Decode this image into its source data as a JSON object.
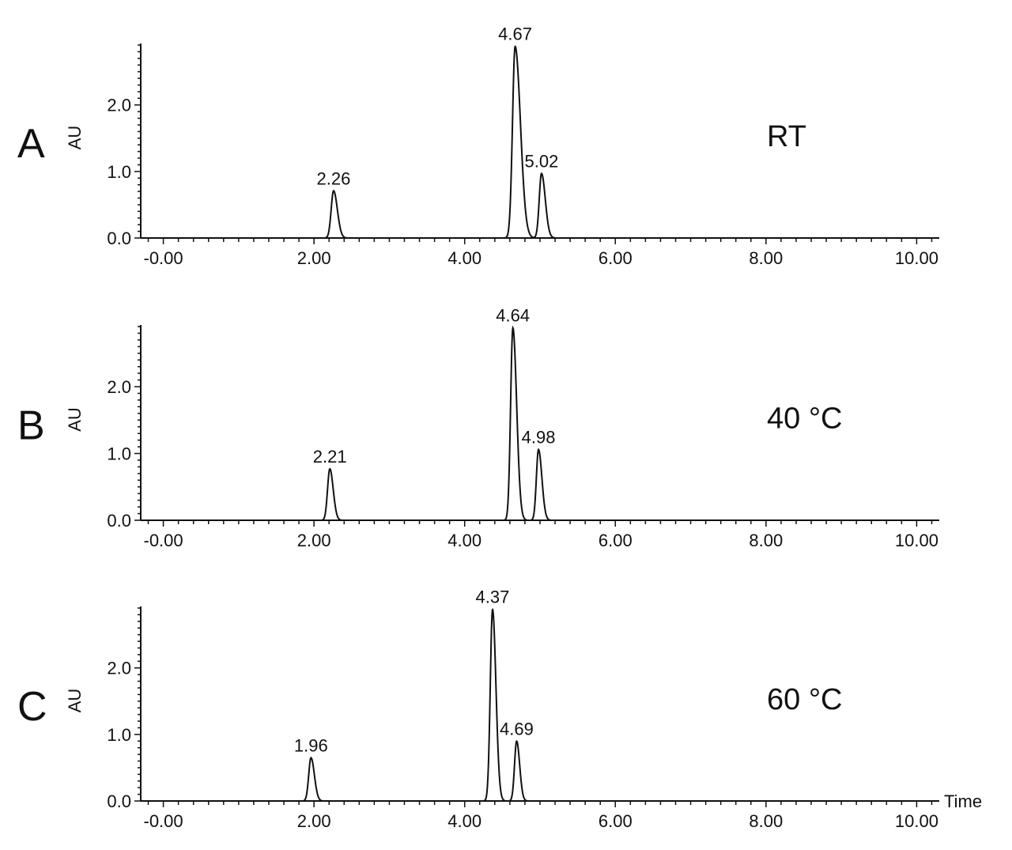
{
  "chart_data": [
    {
      "type": "line",
      "panel": "A",
      "condition": "RT",
      "ylabel": "AU",
      "xlabel": "",
      "xlim": [
        -0.3,
        10.3
      ],
      "ylim": [
        0.0,
        2.9
      ],
      "x_ticks": [
        "-0.00",
        "2.00",
        "4.00",
        "6.00",
        "8.00",
        "10.00"
      ],
      "x_tick_values": [
        0,
        2,
        4,
        6,
        8,
        10
      ],
      "y_ticks": [
        "0.0",
        "1.0",
        "2.0"
      ],
      "y_tick_values": [
        0,
        1,
        2
      ],
      "peaks": [
        {
          "label": "2.26",
          "x": 2.26,
          "height": 0.71,
          "sigma_left": 0.032,
          "sigma_right": 0.05
        },
        {
          "label": "4.67",
          "x": 4.67,
          "height": 2.88,
          "sigma_left": 0.035,
          "sigma_right": 0.07
        },
        {
          "label": "5.02",
          "x": 5.02,
          "height": 0.97,
          "sigma_left": 0.03,
          "sigma_right": 0.05
        }
      ]
    },
    {
      "type": "line",
      "panel": "B",
      "condition": "40 °C",
      "ylabel": "AU",
      "xlabel": "",
      "xlim": [
        -0.3,
        10.3
      ],
      "ylim": [
        0.0,
        2.9
      ],
      "x_ticks": [
        "-0.00",
        "2.00",
        "4.00",
        "6.00",
        "8.00",
        "10.00"
      ],
      "x_tick_values": [
        0,
        2,
        4,
        6,
        8,
        10
      ],
      "y_ticks": [
        "0.0",
        "1.0",
        "2.0"
      ],
      "y_tick_values": [
        0,
        1,
        2
      ],
      "peaks": [
        {
          "label": "2.21",
          "x": 2.21,
          "height": 0.77,
          "sigma_left": 0.03,
          "sigma_right": 0.045
        },
        {
          "label": "4.64",
          "x": 4.64,
          "height": 2.88,
          "sigma_left": 0.03,
          "sigma_right": 0.05
        },
        {
          "label": "4.98",
          "x": 4.98,
          "height": 1.06,
          "sigma_left": 0.028,
          "sigma_right": 0.045
        }
      ]
    },
    {
      "type": "line",
      "panel": "C",
      "condition": "60 °C",
      "ylabel": "AU",
      "xlabel": "Time",
      "xlim": [
        -0.3,
        10.3
      ],
      "ylim": [
        0.0,
        2.9
      ],
      "x_ticks": [
        "-0.00",
        "2.00",
        "4.00",
        "6.00",
        "8.00",
        "10.00"
      ],
      "x_tick_values": [
        0,
        2,
        4,
        6,
        8,
        10
      ],
      "y_ticks": [
        "0.0",
        "1.0",
        "2.0"
      ],
      "y_tick_values": [
        0,
        1,
        2
      ],
      "peaks": [
        {
          "label": "1.96",
          "x": 1.96,
          "height": 0.65,
          "sigma_left": 0.03,
          "sigma_right": 0.045
        },
        {
          "label": "4.37",
          "x": 4.37,
          "height": 2.88,
          "sigma_left": 0.03,
          "sigma_right": 0.045
        },
        {
          "label": "4.69",
          "x": 4.69,
          "height": 0.9,
          "sigma_left": 0.028,
          "sigma_right": 0.04
        }
      ]
    }
  ]
}
